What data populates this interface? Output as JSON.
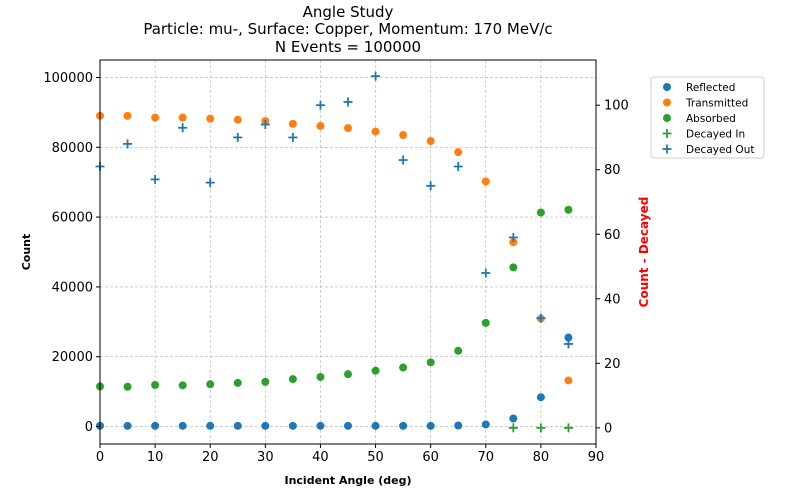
{
  "chart_data": {
    "type": "scatter",
    "title": [
      "Angle Study",
      "Particle: mu-, Surface: Copper, Momentum: 170 MeV/c",
      "N Events = 100000"
    ],
    "xlabel": "Incident Angle (deg)",
    "ylabel": "Count",
    "y2label": "Count - Decayed",
    "xlim": [
      0,
      90
    ],
    "ylim": [
      -5000,
      105000
    ],
    "y2lim": [
      -5,
      114
    ],
    "xticks": [
      0,
      10,
      20,
      30,
      40,
      50,
      60,
      70,
      80,
      90
    ],
    "yticks": [
      0,
      20000,
      40000,
      60000,
      80000,
      100000
    ],
    "y2ticks": [
      0,
      20,
      40,
      60,
      80,
      100
    ],
    "grid": true,
    "legend_position": "right",
    "x": [
      0,
      5,
      10,
      15,
      20,
      25,
      30,
      35,
      40,
      45,
      50,
      55,
      60,
      65,
      70,
      75,
      80,
      85
    ],
    "series": [
      {
        "name": "Reflected",
        "axis": "left",
        "marker": "circle",
        "color": "#1f77b4",
        "values": [
          200,
          200,
          200,
          200,
          200,
          200,
          200,
          200,
          200,
          200,
          200,
          200,
          200,
          300,
          600,
          2300,
          8400,
          25500
        ]
      },
      {
        "name": "Transmitted",
        "axis": "left",
        "marker": "circle",
        "color": "#ff7f0e",
        "values": [
          89000,
          89000,
          88500,
          88500,
          88200,
          87900,
          87500,
          86700,
          86100,
          85500,
          84500,
          83500,
          81800,
          78600,
          70200,
          52800,
          30900,
          13200
        ]
      },
      {
        "name": "Absorbed",
        "axis": "left",
        "marker": "circle",
        "color": "#2ca02c",
        "values": [
          11500,
          11400,
          11900,
          11800,
          12100,
          12500,
          12800,
          13600,
          14200,
          15000,
          16000,
          16900,
          18400,
          21700,
          29700,
          45600,
          61300,
          62100
        ]
      },
      {
        "name": "Decayed In",
        "axis": "right",
        "marker": "plus",
        "color": "#2ca02c",
        "values": [
          null,
          null,
          null,
          null,
          null,
          null,
          null,
          null,
          null,
          null,
          null,
          null,
          null,
          null,
          null,
          0,
          0,
          0
        ]
      },
      {
        "name": "Decayed Out",
        "axis": "right",
        "marker": "plus",
        "color": "#1f77b4",
        "values": [
          81,
          88,
          77,
          93,
          76,
          90,
          94,
          90,
          100,
          101,
          109,
          83,
          75,
          81,
          48,
          59,
          34,
          26
        ]
      }
    ]
  }
}
